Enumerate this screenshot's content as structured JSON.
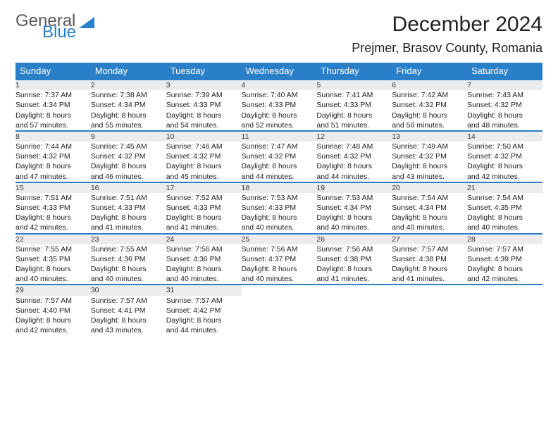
{
  "logo": {
    "word1": "General",
    "word2": "Blue"
  },
  "header": {
    "month_title": "December 2024",
    "location": "Prejmer, Brasov County, Romania"
  },
  "colors": {
    "header_bg": "#2a7fc9",
    "header_text": "#ffffff",
    "daynum_bg": "#ececec",
    "row_border": "#2a7fc9",
    "page_bg": "#ffffff"
  },
  "typography": {
    "month_title_fontsize": 30,
    "location_fontsize": 18,
    "dayheader_fontsize": 13,
    "cell_fontsize": 10.5
  },
  "day_headers": [
    "Sunday",
    "Monday",
    "Tuesday",
    "Wednesday",
    "Thursday",
    "Friday",
    "Saturday"
  ],
  "weeks": [
    {
      "nums": [
        "1",
        "2",
        "3",
        "4",
        "5",
        "6",
        "7"
      ],
      "cells": [
        {
          "sunrise": "Sunrise: 7:37 AM",
          "sunset": "Sunset: 4:34 PM",
          "day1": "Daylight: 8 hours",
          "day2": "and 57 minutes."
        },
        {
          "sunrise": "Sunrise: 7:38 AM",
          "sunset": "Sunset: 4:34 PM",
          "day1": "Daylight: 8 hours",
          "day2": "and 55 minutes."
        },
        {
          "sunrise": "Sunrise: 7:39 AM",
          "sunset": "Sunset: 4:33 PM",
          "day1": "Daylight: 8 hours",
          "day2": "and 54 minutes."
        },
        {
          "sunrise": "Sunrise: 7:40 AM",
          "sunset": "Sunset: 4:33 PM",
          "day1": "Daylight: 8 hours",
          "day2": "and 52 minutes."
        },
        {
          "sunrise": "Sunrise: 7:41 AM",
          "sunset": "Sunset: 4:33 PM",
          "day1": "Daylight: 8 hours",
          "day2": "and 51 minutes."
        },
        {
          "sunrise": "Sunrise: 7:42 AM",
          "sunset": "Sunset: 4:32 PM",
          "day1": "Daylight: 8 hours",
          "day2": "and 50 minutes."
        },
        {
          "sunrise": "Sunrise: 7:43 AM",
          "sunset": "Sunset: 4:32 PM",
          "day1": "Daylight: 8 hours",
          "day2": "and 48 minutes."
        }
      ]
    },
    {
      "nums": [
        "8",
        "9",
        "10",
        "11",
        "12",
        "13",
        "14"
      ],
      "cells": [
        {
          "sunrise": "Sunrise: 7:44 AM",
          "sunset": "Sunset: 4:32 PM",
          "day1": "Daylight: 8 hours",
          "day2": "and 47 minutes."
        },
        {
          "sunrise": "Sunrise: 7:45 AM",
          "sunset": "Sunset: 4:32 PM",
          "day1": "Daylight: 8 hours",
          "day2": "and 46 minutes."
        },
        {
          "sunrise": "Sunrise: 7:46 AM",
          "sunset": "Sunset: 4:32 PM",
          "day1": "Daylight: 8 hours",
          "day2": "and 45 minutes."
        },
        {
          "sunrise": "Sunrise: 7:47 AM",
          "sunset": "Sunset: 4:32 PM",
          "day1": "Daylight: 8 hours",
          "day2": "and 44 minutes."
        },
        {
          "sunrise": "Sunrise: 7:48 AM",
          "sunset": "Sunset: 4:32 PM",
          "day1": "Daylight: 8 hours",
          "day2": "and 44 minutes."
        },
        {
          "sunrise": "Sunrise: 7:49 AM",
          "sunset": "Sunset: 4:32 PM",
          "day1": "Daylight: 8 hours",
          "day2": "and 43 minutes."
        },
        {
          "sunrise": "Sunrise: 7:50 AM",
          "sunset": "Sunset: 4:32 PM",
          "day1": "Daylight: 8 hours",
          "day2": "and 42 minutes."
        }
      ]
    },
    {
      "nums": [
        "15",
        "16",
        "17",
        "18",
        "19",
        "20",
        "21"
      ],
      "cells": [
        {
          "sunrise": "Sunrise: 7:51 AM",
          "sunset": "Sunset: 4:33 PM",
          "day1": "Daylight: 8 hours",
          "day2": "and 42 minutes."
        },
        {
          "sunrise": "Sunrise: 7:51 AM",
          "sunset": "Sunset: 4:33 PM",
          "day1": "Daylight: 8 hours",
          "day2": "and 41 minutes."
        },
        {
          "sunrise": "Sunrise: 7:52 AM",
          "sunset": "Sunset: 4:33 PM",
          "day1": "Daylight: 8 hours",
          "day2": "and 41 minutes."
        },
        {
          "sunrise": "Sunrise: 7:53 AM",
          "sunset": "Sunset: 4:33 PM",
          "day1": "Daylight: 8 hours",
          "day2": "and 40 minutes."
        },
        {
          "sunrise": "Sunrise: 7:53 AM",
          "sunset": "Sunset: 4:34 PM",
          "day1": "Daylight: 8 hours",
          "day2": "and 40 minutes."
        },
        {
          "sunrise": "Sunrise: 7:54 AM",
          "sunset": "Sunset: 4:34 PM",
          "day1": "Daylight: 8 hours",
          "day2": "and 40 minutes."
        },
        {
          "sunrise": "Sunrise: 7:54 AM",
          "sunset": "Sunset: 4:35 PM",
          "day1": "Daylight: 8 hours",
          "day2": "and 40 minutes."
        }
      ]
    },
    {
      "nums": [
        "22",
        "23",
        "24",
        "25",
        "26",
        "27",
        "28"
      ],
      "cells": [
        {
          "sunrise": "Sunrise: 7:55 AM",
          "sunset": "Sunset: 4:35 PM",
          "day1": "Daylight: 8 hours",
          "day2": "and 40 minutes."
        },
        {
          "sunrise": "Sunrise: 7:55 AM",
          "sunset": "Sunset: 4:36 PM",
          "day1": "Daylight: 8 hours",
          "day2": "and 40 minutes."
        },
        {
          "sunrise": "Sunrise: 7:56 AM",
          "sunset": "Sunset: 4:36 PM",
          "day1": "Daylight: 8 hours",
          "day2": "and 40 minutes."
        },
        {
          "sunrise": "Sunrise: 7:56 AM",
          "sunset": "Sunset: 4:37 PM",
          "day1": "Daylight: 8 hours",
          "day2": "and 40 minutes."
        },
        {
          "sunrise": "Sunrise: 7:56 AM",
          "sunset": "Sunset: 4:38 PM",
          "day1": "Daylight: 8 hours",
          "day2": "and 41 minutes."
        },
        {
          "sunrise": "Sunrise: 7:57 AM",
          "sunset": "Sunset: 4:38 PM",
          "day1": "Daylight: 8 hours",
          "day2": "and 41 minutes."
        },
        {
          "sunrise": "Sunrise: 7:57 AM",
          "sunset": "Sunset: 4:39 PM",
          "day1": "Daylight: 8 hours",
          "day2": "and 42 minutes."
        }
      ]
    },
    {
      "nums": [
        "29",
        "30",
        "31",
        "",
        "",
        "",
        ""
      ],
      "cells": [
        {
          "sunrise": "Sunrise: 7:57 AM",
          "sunset": "Sunset: 4:40 PM",
          "day1": "Daylight: 8 hours",
          "day2": "and 42 minutes."
        },
        {
          "sunrise": "Sunrise: 7:57 AM",
          "sunset": "Sunset: 4:41 PM",
          "day1": "Daylight: 8 hours",
          "day2": "and 43 minutes."
        },
        {
          "sunrise": "Sunrise: 7:57 AM",
          "sunset": "Sunset: 4:42 PM",
          "day1": "Daylight: 8 hours",
          "day2": "and 44 minutes."
        },
        null,
        null,
        null,
        null
      ]
    }
  ]
}
